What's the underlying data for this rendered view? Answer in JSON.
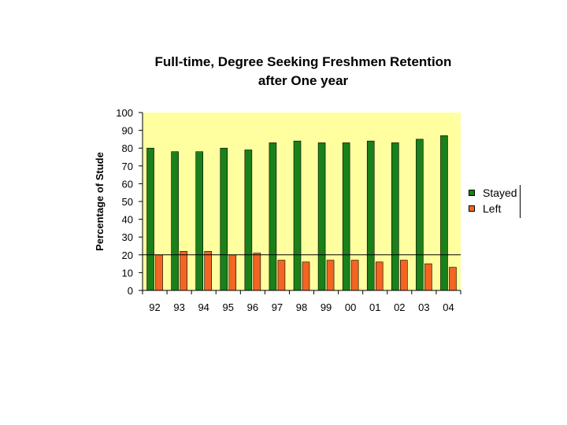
{
  "chart_data": {
    "type": "bar",
    "title_lines": [
      "Full-time, Degree Seeking Freshmen Retention",
      "after One year"
    ],
    "xlabel": "",
    "ylabel": "Percentage of Stude",
    "ylim": [
      0,
      100
    ],
    "yticks": [
      0,
      10,
      20,
      30,
      40,
      50,
      60,
      70,
      80,
      90,
      100
    ],
    "categories": [
      "92",
      "93",
      "94",
      "95",
      "96",
      "97",
      "98",
      "99",
      "00",
      "01",
      "02",
      "03",
      "04"
    ],
    "series": [
      {
        "name": "Stayed",
        "color": "#1a801a",
        "values": [
          80,
          78,
          78,
          80,
          79,
          83,
          84,
          83,
          83,
          84,
          83,
          85,
          87
        ]
      },
      {
        "name": "Left",
        "color": "#f26522",
        "values": [
          20,
          22,
          22,
          20,
          21,
          17,
          16,
          17,
          17,
          16,
          17,
          15,
          13
        ]
      }
    ],
    "reference_line": 20,
    "plot_background": "#ffffa0",
    "grid": false,
    "legend": "right"
  }
}
